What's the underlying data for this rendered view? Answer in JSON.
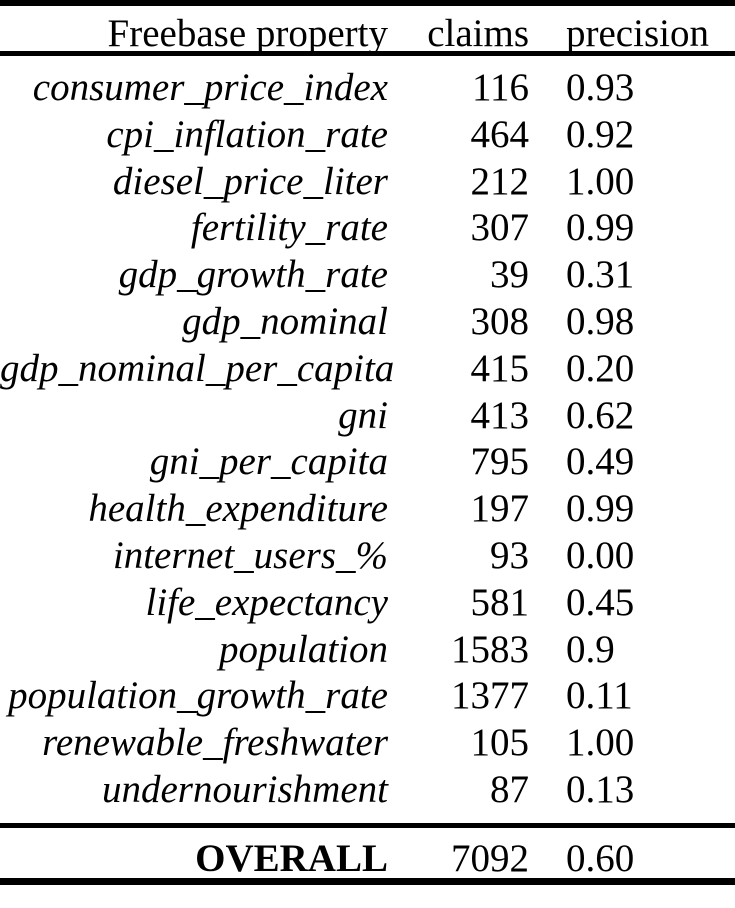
{
  "table": {
    "headers": {
      "property": "Freebase property",
      "claims": "claims",
      "precision": "precision"
    },
    "rows": [
      {
        "property": "consumer_price_index",
        "claims": "116",
        "precision": "0.93"
      },
      {
        "property": "cpi_inflation_rate",
        "claims": "464",
        "precision": "0.92"
      },
      {
        "property": "diesel_price_liter",
        "claims": "212",
        "precision": "1.00"
      },
      {
        "property": "fertility_rate",
        "claims": "307",
        "precision": "0.99"
      },
      {
        "property": "gdp_growth_rate",
        "claims": "39",
        "precision": "0.31"
      },
      {
        "property": "gdp_nominal",
        "claims": "308",
        "precision": "0.98"
      },
      {
        "property": "gdp_nominal_per_capita",
        "claims": "415",
        "precision": "0.20"
      },
      {
        "property": "gni",
        "claims": "413",
        "precision": "0.62"
      },
      {
        "property": "gni_per_capita",
        "claims": "795",
        "precision": "0.49"
      },
      {
        "property": "health_expenditure",
        "claims": "197",
        "precision": "0.99"
      },
      {
        "property": "internet_users_%",
        "claims": "93",
        "precision": "0.00"
      },
      {
        "property": "life_expectancy",
        "claims": "581",
        "precision": "0.45"
      },
      {
        "property": "population",
        "claims": "1583",
        "precision": "0.9"
      },
      {
        "property": "population_growth_rate",
        "claims": "1377",
        "precision": "0.11"
      },
      {
        "property": "renewable_freshwater",
        "claims": "105",
        "precision": "1.00"
      },
      {
        "property": "undernourishment",
        "claims": "87",
        "precision": "0.13"
      }
    ],
    "footer": {
      "property": "OVERALL",
      "claims": "7092",
      "precision": "0.60"
    }
  },
  "colors": {
    "background": "#ffffff",
    "text": "#000000",
    "rule": "#000000"
  }
}
